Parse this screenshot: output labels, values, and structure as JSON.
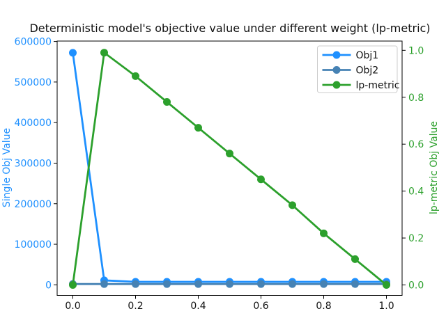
{
  "figure": {
    "background": "#ffffff",
    "text_color": "#111111"
  },
  "chart_data": {
    "type": "line",
    "title": "Deterministic model's objective value under different weight (lp-metric)",
    "grid": false,
    "legend_position": "upper right",
    "x": [
      0.0,
      0.1,
      0.2,
      0.3,
      0.4,
      0.5,
      0.6,
      0.7,
      0.8,
      0.9,
      1.0
    ],
    "xlim": [
      -0.05,
      1.05
    ],
    "x_ticks": [
      0.0,
      0.2,
      0.4,
      0.6,
      0.8,
      1.0
    ],
    "x_tick_labels": [
      "0.0",
      "0.2",
      "0.4",
      "0.6",
      "0.8",
      "1.0"
    ],
    "left_axis": {
      "label": "Single Obj Value",
      "color": "#1E90FF",
      "lim": [
        -26000,
        601000
      ],
      "ticks": [
        0,
        100000,
        200000,
        300000,
        400000,
        500000,
        600000
      ],
      "tick_labels": [
        "0",
        "100000",
        "200000",
        "300000",
        "400000",
        "500000",
        "600000"
      ]
    },
    "right_axis": {
      "label": "lp-metric Obj Value",
      "color": "#2ca02c",
      "lim": [
        -0.0445,
        1.0395
      ],
      "ticks": [
        0.0,
        0.2,
        0.4,
        0.6,
        0.8,
        1.0
      ],
      "tick_labels": [
        "0.0",
        "0.2",
        "0.4",
        "0.6",
        "0.8",
        "1.0"
      ]
    },
    "series": [
      {
        "name": "Obj1",
        "axis": "left",
        "color": "#1E90FF",
        "marker": "circle",
        "values": [
          572000,
          11000,
          7500,
          7500,
          7500,
          7500,
          7500,
          7500,
          7500,
          7500,
          7500
        ]
      },
      {
        "name": "Obj2",
        "axis": "left",
        "color": "#4682B4",
        "marker": "circle",
        "values": [
          2000,
          2000,
          2000,
          2000,
          2000,
          2000,
          2000,
          2000,
          2000,
          2000,
          2000
        ]
      },
      {
        "name": "lp-metric",
        "axis": "right",
        "color": "#2ca02c",
        "marker": "circle",
        "values": [
          0.0,
          0.99,
          0.89,
          0.78,
          0.67,
          0.56,
          0.45,
          0.34,
          0.22,
          0.11,
          0.0
        ]
      }
    ],
    "legend": {
      "entries": [
        "Obj1",
        "Obj2",
        "lp-metric"
      ],
      "border_color": "#cccccc",
      "background": "#ffffff"
    }
  }
}
